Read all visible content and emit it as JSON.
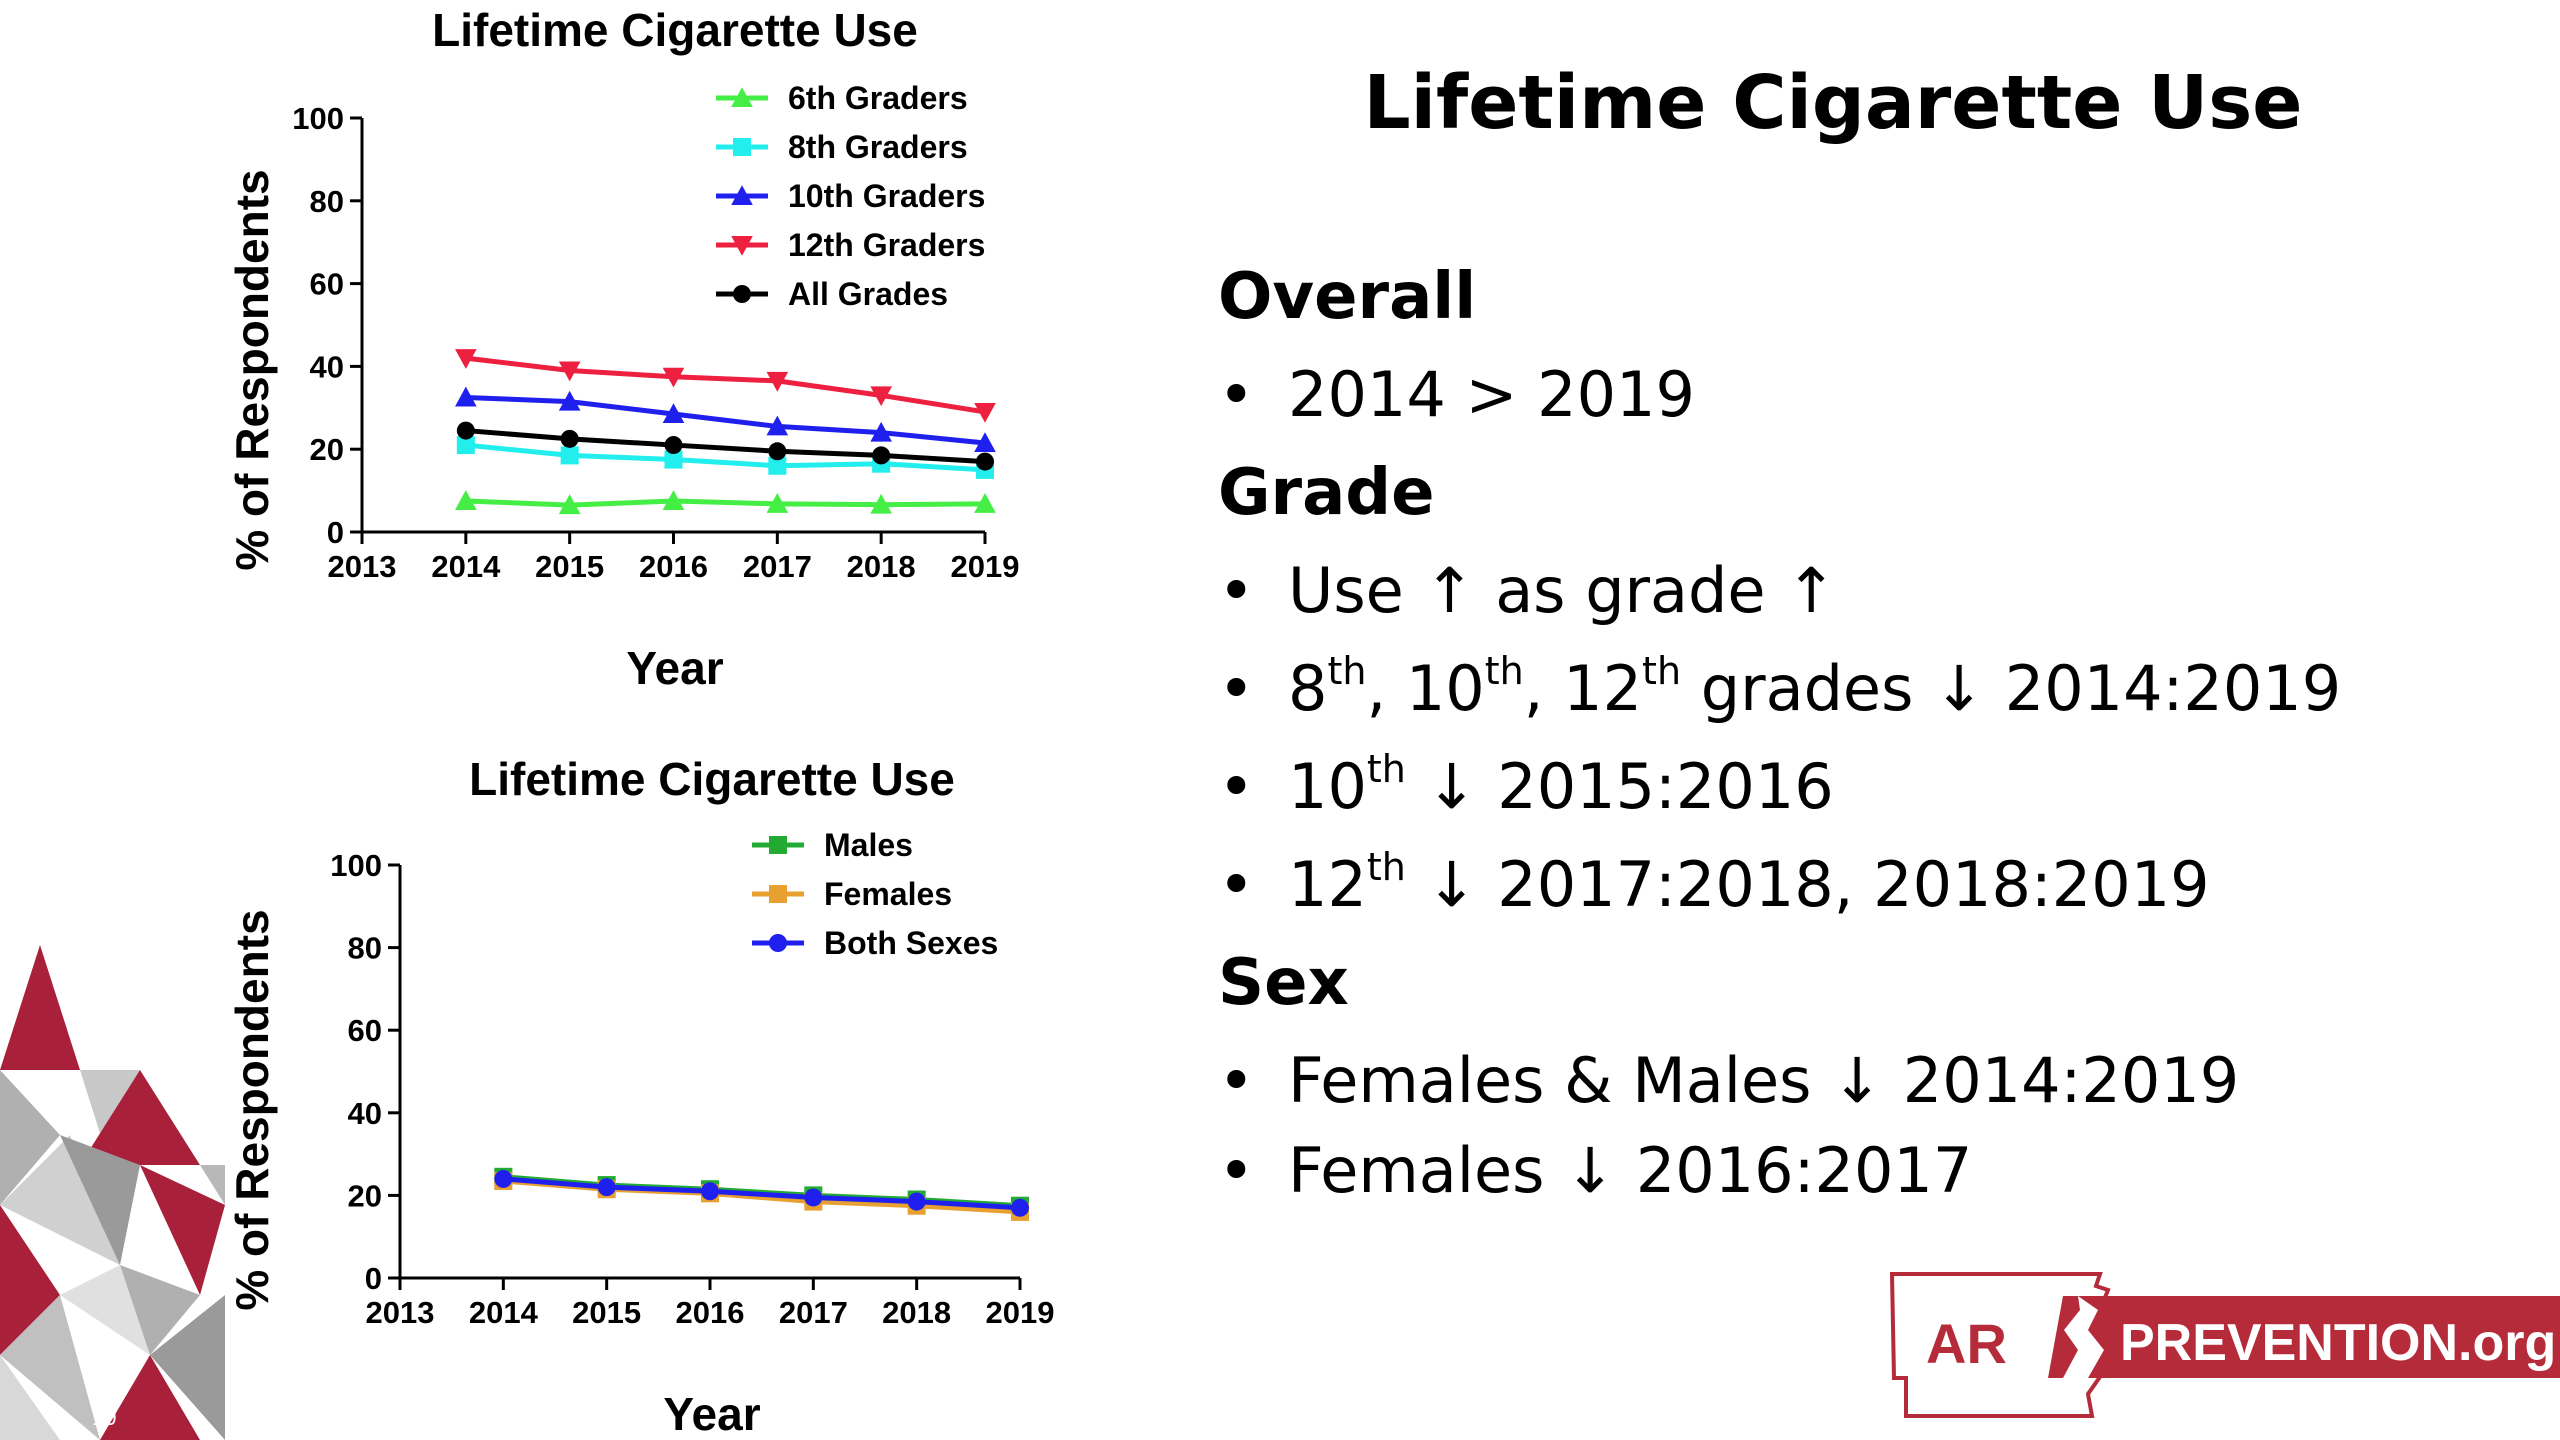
{
  "slide": {
    "title": "Lifetime Cigarette Use",
    "slide_number": "10",
    "sections": [
      {
        "heading": "Overall",
        "bullets": [
          {
            "text": "2014 > 2019"
          }
        ]
      },
      {
        "heading": "Grade",
        "bullets": [
          {
            "text": " Use ↑ as grade ↑"
          },
          {
            "parts": [
              {
                "t": " 8"
              },
              {
                "sup": "th"
              },
              {
                "t": ", 10"
              },
              {
                "sup": "th"
              },
              {
                "t": ", 12"
              },
              {
                "sup": "th"
              },
              {
                "t": " grades ↓ 2014:2019"
              }
            ]
          },
          {
            "parts": [
              {
                "t": " 10"
              },
              {
                "sup": "th"
              },
              {
                "t": " ↓ 2015:2016"
              }
            ]
          },
          {
            "parts": [
              {
                "t": " 12"
              },
              {
                "sup": "th"
              },
              {
                "t": " ↓ 2017:2018, 2018:2019"
              }
            ]
          }
        ]
      },
      {
        "heading": "Sex",
        "bullets": [
          {
            "text": "Females & Males ↓ 2014:2019"
          },
          {
            "text": "Females ↓ 2016:2017"
          }
        ]
      }
    ]
  },
  "logo": {
    "left_text": "AR",
    "right_text": "PREVENTION.org",
    "brand_color": "#b52b3a"
  },
  "chart_data": [
    {
      "type": "line",
      "title": "Lifetime Cigarette Use",
      "xlabel": "Year",
      "ylabel": "% of Respondents",
      "xlim": [
        2013,
        2019
      ],
      "ylim": [
        0,
        100
      ],
      "xticks": [
        2013,
        2014,
        2015,
        2016,
        2017,
        2018,
        2019
      ],
      "yticks": [
        0,
        20,
        40,
        60,
        80,
        100
      ],
      "grid": false,
      "legend": "top-right",
      "x": [
        2014,
        2015,
        2016,
        2017,
        2018,
        2019
      ],
      "series": [
        {
          "name": "6th Graders",
          "color": "#44ee44",
          "marker": "triangle-up",
          "values": [
            7.5,
            6.5,
            7.5,
            6.8,
            6.6,
            6.8
          ]
        },
        {
          "name": "8th Graders",
          "color": "#22eeee",
          "marker": "square",
          "values": [
            21,
            18.5,
            17.5,
            16,
            16.5,
            15
          ]
        },
        {
          "name": "10th Graders",
          "color": "#2020ee",
          "marker": "triangle-up",
          "values": [
            32.5,
            31.5,
            28.5,
            25.5,
            24,
            21.5
          ]
        },
        {
          "name": "12th Graders",
          "color": "#ee2040",
          "marker": "triangle-down",
          "values": [
            42,
            39,
            37.5,
            36.5,
            33,
            29
          ]
        },
        {
          "name": "All Grades",
          "color": "#000000",
          "marker": "circle",
          "values": [
            24.5,
            22.5,
            21,
            19.5,
            18.5,
            17
          ]
        }
      ]
    },
    {
      "type": "line",
      "title": "Lifetime Cigarette Use",
      "xlabel": "Year",
      "ylabel": "% of Respondents",
      "xlim": [
        2013,
        2019
      ],
      "ylim": [
        0,
        100
      ],
      "xticks": [
        2013,
        2014,
        2015,
        2016,
        2017,
        2018,
        2019
      ],
      "yticks": [
        0,
        20,
        40,
        60,
        80,
        100
      ],
      "grid": false,
      "legend": "top-right",
      "x": [
        2014,
        2015,
        2016,
        2017,
        2018,
        2019
      ],
      "series": [
        {
          "name": "Males",
          "color": "#22aa33",
          "marker": "square",
          "values": [
            24.5,
            22.5,
            21.5,
            20,
            19,
            17.5
          ]
        },
        {
          "name": "Females",
          "color": "#e8a030",
          "marker": "square",
          "values": [
            23.5,
            21.5,
            20.5,
            18.5,
            17.5,
            16
          ]
        },
        {
          "name": "Both Sexes",
          "color": "#2020ee",
          "marker": "circle",
          "values": [
            24,
            22,
            21,
            19.5,
            18.5,
            17
          ]
        }
      ]
    }
  ]
}
